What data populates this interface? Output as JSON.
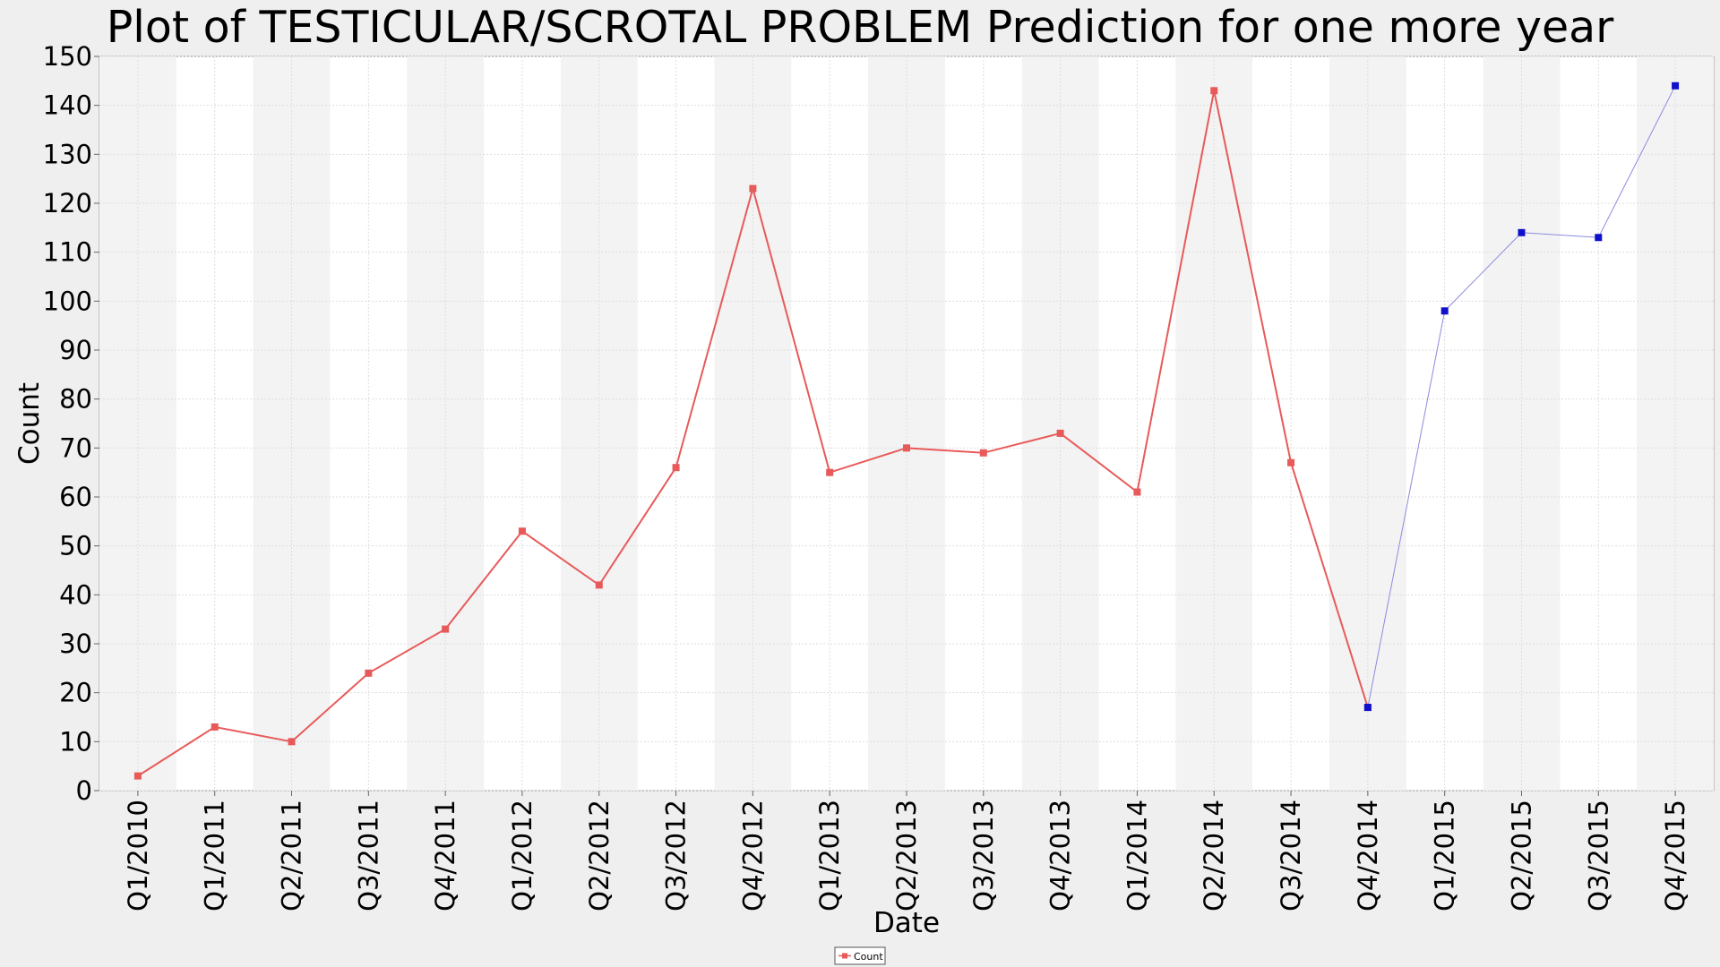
{
  "chart_data": {
    "type": "line",
    "title": "Plot of TESTICULAR/SCROTAL PROBLEM Prediction for one more year",
    "xlabel": "Date",
    "ylabel": "Count",
    "ylim": [
      0,
      150
    ],
    "yticks": [
      0,
      10,
      20,
      30,
      40,
      50,
      60,
      70,
      80,
      90,
      100,
      110,
      120,
      130,
      140,
      150
    ],
    "grid": true,
    "legend_position": "bottom-center",
    "categories": [
      "Q1/2010",
      "Q1/2011",
      "Q2/2011",
      "Q3/2011",
      "Q4/2011",
      "Q1/2012",
      "Q2/2012",
      "Q3/2012",
      "Q4/2012",
      "Q1/2013",
      "Q2/2013",
      "Q3/2013",
      "Q4/2013",
      "Q1/2014",
      "Q2/2014",
      "Q3/2014",
      "Q4/2014",
      "Q1/2015",
      "Q2/2015",
      "Q3/2015",
      "Q4/2015"
    ],
    "series": [
      {
        "name": "Count",
        "color": "#e85a5a",
        "values": [
          3,
          13,
          10,
          24,
          33,
          53,
          42,
          66,
          123,
          65,
          70,
          69,
          73,
          61,
          143,
          67,
          17,
          null,
          null,
          null,
          null
        ]
      },
      {
        "color": "#1010cc",
        "line_color": "#8a8ae0",
        "values": [
          null,
          null,
          null,
          null,
          null,
          null,
          null,
          null,
          null,
          null,
          null,
          null,
          null,
          null,
          null,
          null,
          17,
          98,
          114,
          113,
          144
        ]
      }
    ]
  }
}
